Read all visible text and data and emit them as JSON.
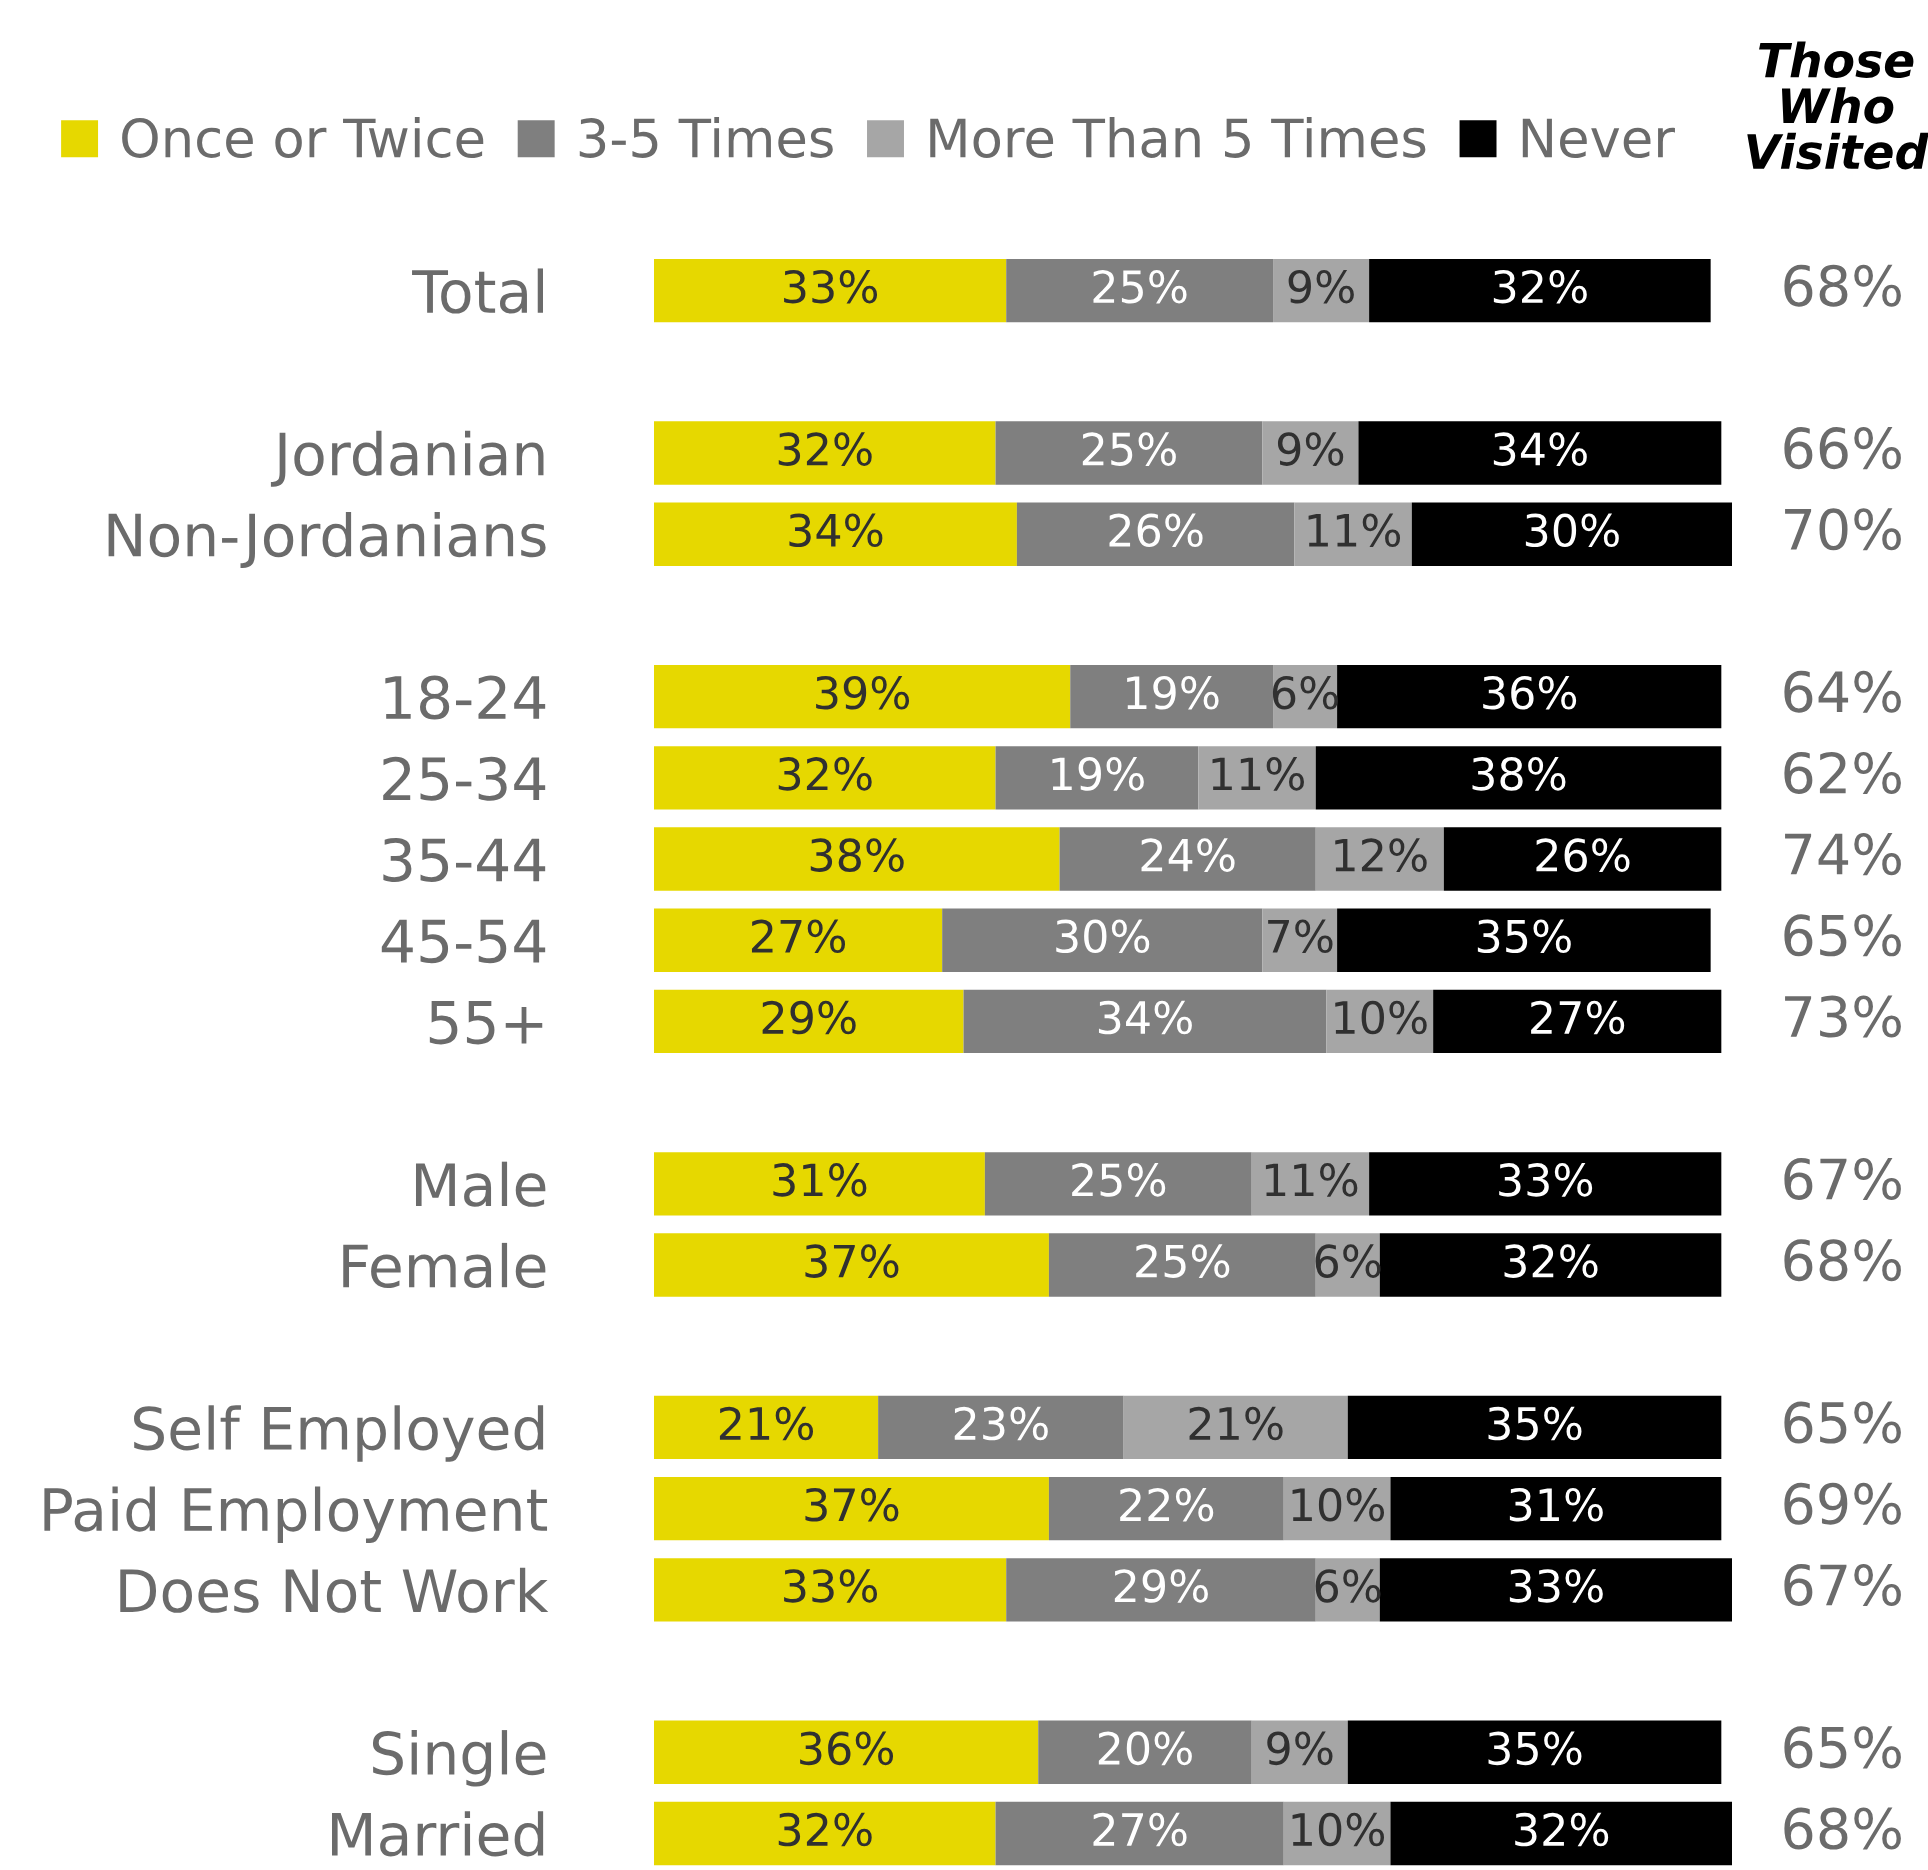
{
  "chart_data": {
    "type": "bar",
    "orientation": "horizontal",
    "stacked": true,
    "legend": "top",
    "grid": false,
    "annotations": [
      "Those\nWho\nVisited",
      "68%",
      "66%",
      "70%",
      "64%",
      "62%",
      "74%",
      "65%",
      "73%",
      "67%",
      "68%",
      "65%",
      "69%",
      "67%",
      "65%",
      "68%"
    ],
    "categories": [
      "Total",
      null,
      "Jordanian",
      "Non-Jordanians",
      null,
      "18-24",
      "25-34",
      "35-44",
      "45-54",
      "55+",
      null,
      "Male",
      "Female",
      null,
      "Self Employed",
      "Paid Employment",
      "Does Not Work",
      null,
      "Single",
      "Married"
    ],
    "series": [
      {
        "name": "Once or Twice",
        "color": "#e6d800",
        "values": [
          33,
          null,
          32,
          34,
          null,
          39,
          32,
          38,
          27,
          29,
          null,
          31,
          37,
          null,
          21,
          37,
          33,
          null,
          36,
          32
        ],
        "value_labels": [
          "33%",
          null,
          "32%",
          "34%",
          null,
          "39%",
          "32%",
          "38%",
          "27%",
          "29%",
          null,
          "31%",
          "37%",
          null,
          "21%",
          "37%",
          "33%",
          null,
          "36%",
          "32%"
        ]
      },
      {
        "name": "3-5 Times",
        "color": "#7f7f7f",
        "values": [
          25,
          null,
          25,
          26,
          null,
          19,
          19,
          24,
          30,
          34,
          null,
          25,
          25,
          null,
          23,
          22,
          29,
          null,
          20,
          27
        ],
        "value_labels": [
          "25%",
          null,
          "25%",
          "26%",
          null,
          "19%",
          "19%",
          "24%",
          "30%",
          "34%",
          null,
          "25%",
          "25%",
          null,
          "23%",
          "22%",
          "29%",
          null,
          "20%",
          "27%"
        ]
      },
      {
        "name": "More Than 5 Times",
        "color": "#a6a6a6",
        "values": [
          9,
          null,
          9,
          11,
          null,
          6,
          11,
          12,
          7,
          10,
          null,
          11,
          6,
          null,
          21,
          10,
          6,
          null,
          9,
          10
        ],
        "value_labels": [
          "9%",
          null,
          "9%",
          "11%",
          null,
          "6%",
          "11%",
          "12%",
          "7%",
          "10%",
          null,
          "11%",
          "6%",
          null,
          "21%",
          "10%",
          "6%",
          null,
          "9%",
          "10%"
        ]
      },
      {
        "name": "Never",
        "color": "#000000",
        "values": [
          32,
          null,
          34,
          30,
          null,
          36,
          38,
          26,
          35,
          27,
          null,
          33,
          32,
          null,
          35,
          31,
          33,
          null,
          35,
          32
        ],
        "value_labels": [
          "32%",
          null,
          "34%",
          "30%",
          null,
          "36%",
          "38%",
          "26%",
          "35%",
          "27%",
          null,
          "33%",
          "32%",
          null,
          "35%",
          "31%",
          "33%",
          null,
          "35%",
          "32%"
        ]
      }
    ]
  }
}
